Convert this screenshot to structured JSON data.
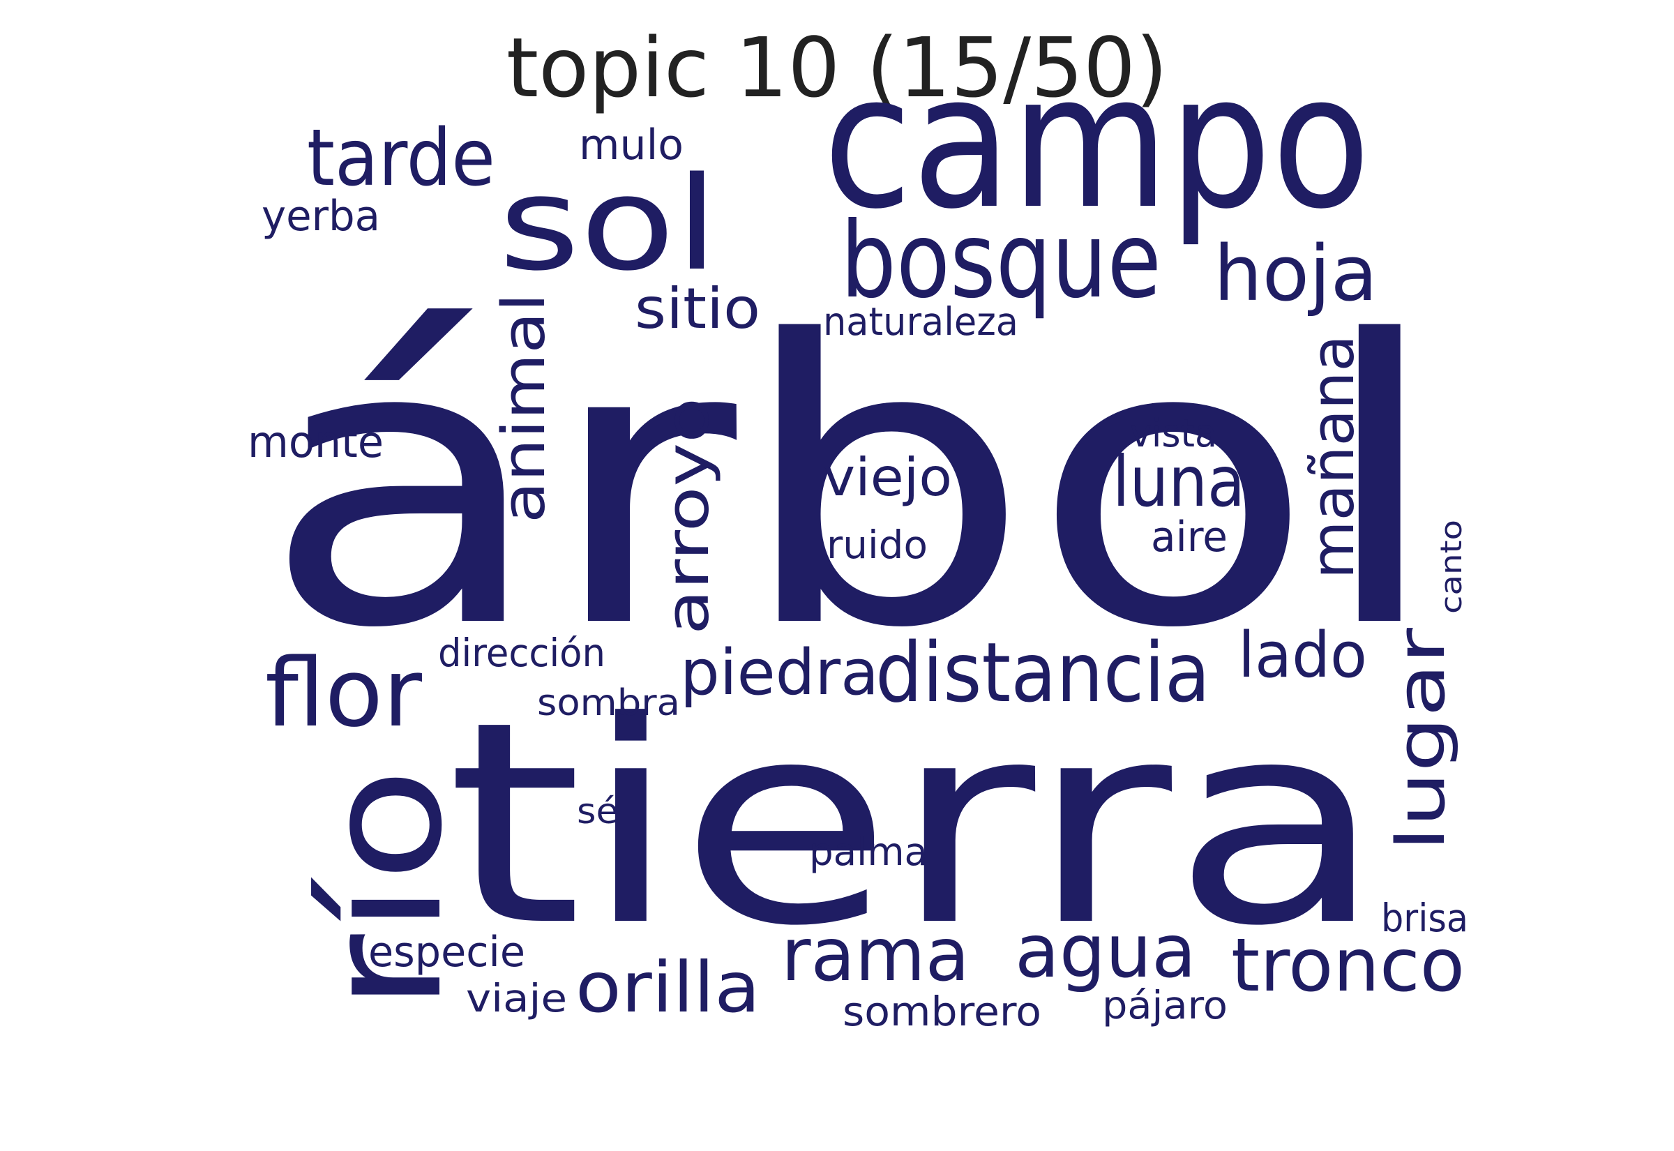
{
  "title": "topic 10 (15/50)",
  "word_color": "#1f1d63",
  "words": [
    {
      "text": "árbol"
    },
    {
      "text": "tierra"
    },
    {
      "text": "campo"
    },
    {
      "text": "río"
    },
    {
      "text": "sol"
    },
    {
      "text": "bosque"
    },
    {
      "text": "distancia"
    },
    {
      "text": "tarde"
    },
    {
      "text": "hoja"
    },
    {
      "text": "animal"
    },
    {
      "text": "arroyo"
    },
    {
      "text": "luna"
    },
    {
      "text": "mañana"
    },
    {
      "text": "lugar"
    },
    {
      "text": "flor"
    },
    {
      "text": "piedra"
    },
    {
      "text": "lado"
    },
    {
      "text": "rama"
    },
    {
      "text": "agua"
    },
    {
      "text": "tronco"
    },
    {
      "text": "orilla"
    },
    {
      "text": "sitio"
    },
    {
      "text": "viejo"
    },
    {
      "text": "mulo"
    },
    {
      "text": "yerba"
    },
    {
      "text": "naturaleza"
    },
    {
      "text": "monte"
    },
    {
      "text": "vista"
    },
    {
      "text": "ruido"
    },
    {
      "text": "aire"
    },
    {
      "text": "canto"
    },
    {
      "text": "dirección"
    },
    {
      "text": "sombra"
    },
    {
      "text": "sé"
    },
    {
      "text": "palma"
    },
    {
      "text": "brisa"
    },
    {
      "text": "especie"
    },
    {
      "text": "viaje"
    },
    {
      "text": "sombrero"
    },
    {
      "text": "pájaro"
    }
  ]
}
